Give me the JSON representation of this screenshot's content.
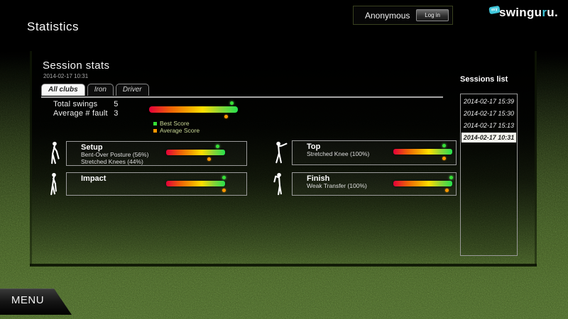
{
  "header": {
    "page_title": "Statistics",
    "user_label": "Anonymous",
    "login_button": "Log in",
    "logo": {
      "badge": "my",
      "text_white": "swingu",
      "text_accent": "r",
      "text_tail": "u."
    }
  },
  "session_panel": {
    "title": "Session stats",
    "date": "2014-02-17 10:31",
    "tabs": [
      {
        "label": "All clubs",
        "active": true
      },
      {
        "label": "Iron",
        "active": false
      },
      {
        "label": "Driver",
        "active": false
      }
    ],
    "summary": {
      "rows": [
        {
          "label": "Total swings",
          "value": "5"
        },
        {
          "label": "Average # fault",
          "value": "3"
        }
      ],
      "best_pct": 93,
      "avg_pct": 86
    },
    "legend": [
      {
        "label": "Best Score",
        "color": "#35e035"
      },
      {
        "label": "Average Score",
        "color": "#ff9800"
      }
    ],
    "sections": [
      {
        "name": "Setup",
        "icon": "golfer-setup",
        "lines": [
          "Bent-Over Posture (56%)",
          "Stretched Knees (44%)"
        ],
        "best_pct": 87,
        "avg_pct": 72
      },
      {
        "name": "Top",
        "icon": "golfer-top",
        "lines": [
          "Stretched Knee (100%)"
        ],
        "best_pct": 86,
        "avg_pct": 86
      },
      {
        "name": "Impact",
        "icon": "golfer-impact",
        "lines": [],
        "best_pct": 97,
        "avg_pct": 97
      },
      {
        "name": "Finish",
        "icon": "golfer-finish",
        "lines": [
          "Weak Transfer (100%)"
        ],
        "best_pct": 97,
        "avg_pct": 90
      }
    ]
  },
  "sessions_list": {
    "title": "Sessions list",
    "items": [
      {
        "label": "2014-02-17 15:39",
        "selected": false
      },
      {
        "label": "2014-02-17 15:30",
        "selected": false
      },
      {
        "label": "2014-02-17 15:13",
        "selected": false
      },
      {
        "label": "2014-02-17 10:31",
        "selected": true
      }
    ]
  },
  "menu": {
    "label": "MENU"
  },
  "colors": {
    "accent_cyan": "#3fc6da",
    "best_dot": "#35e035",
    "avg_dot": "#ff9800",
    "bar_gradient": [
      "#e40038",
      "#ee6407",
      "#f5a800",
      "#ffdf00",
      "#8ed435",
      "#26e04e"
    ],
    "grass": "#659134"
  }
}
